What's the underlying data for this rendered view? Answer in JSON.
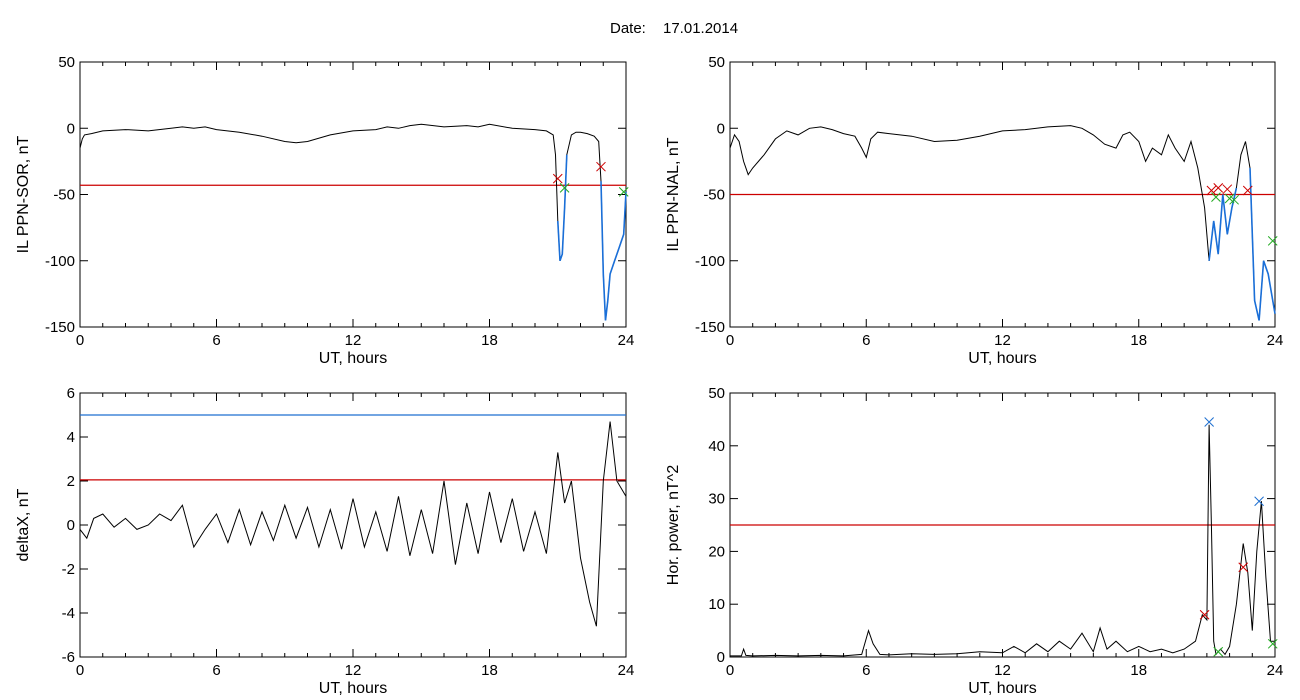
{
  "header": {
    "date_label": "Date:",
    "date_value": "17.01.2014"
  },
  "colors": {
    "trace": "#000000",
    "threshold_red": "#cc0000",
    "threshold_blue": "#1f6fd0",
    "segment_blue": "#1a6fd8",
    "marker_green": "#22aa22",
    "marker_red": "#cc0000",
    "marker_blue": "#1f6fd0"
  },
  "chart_data": [
    {
      "type": "line",
      "id": "sor",
      "xlabel": "UT, hours",
      "ylabel": "IL PPN-SOR, nT",
      "xlim": [
        0,
        24
      ],
      "ylim": [
        -150,
        50
      ],
      "xticks": [
        "0",
        "6",
        "12",
        "18",
        "24"
      ],
      "yticks": [
        "50",
        "0",
        "-50",
        "-100",
        "-150"
      ],
      "threshold": -43,
      "series": [
        {
          "x": [
            0,
            0.1,
            0.2,
            0.5,
            1,
            2,
            3,
            4,
            4.5,
            5,
            5.5,
            6,
            7,
            8,
            9,
            9.5,
            10,
            11,
            12,
            13,
            13.5,
            14,
            14.5,
            15,
            16,
            17,
            17.5,
            18,
            19,
            20,
            20.5,
            20.8,
            20.9,
            21,
            21.1,
            21.2,
            21.3,
            21.4,
            21.6,
            21.8,
            22,
            22.3,
            22.6,
            22.8,
            22.9,
            23,
            23.1,
            23.2,
            23.3,
            23.5,
            23.7,
            23.9,
            24
          ],
          "y": [
            -15,
            -8,
            -5,
            -4,
            -2,
            -1,
            -2,
            0,
            1,
            0,
            1,
            -1,
            -3,
            -6,
            -10,
            -11,
            -10,
            -5,
            -2,
            -1,
            1,
            0,
            2,
            3,
            1,
            2,
            1,
            3,
            0,
            -1,
            -2,
            -5,
            -20,
            -70,
            -100,
            -95,
            -60,
            -20,
            -5,
            -3,
            -3,
            -4,
            -6,
            -10,
            -40,
            -110,
            -145,
            -130,
            -110,
            -100,
            -90,
            -80,
            -48
          ]
        }
      ],
      "highlight_segments": [
        [
          21.0,
          21.4
        ],
        [
          22.9,
          24
        ]
      ],
      "markers_red": [
        {
          "x": 21.0,
          "y": -38
        },
        {
          "x": 22.9,
          "y": -29
        }
      ],
      "markers_green": [
        {
          "x": 21.3,
          "y": -45
        },
        {
          "x": 23.9,
          "y": -48
        }
      ]
    },
    {
      "type": "line",
      "id": "nal",
      "xlabel": "UT, hours",
      "ylabel": "IL PPN-NAL, nT",
      "xlim": [
        0,
        24
      ],
      "ylim": [
        -150,
        50
      ],
      "xticks": [
        "0",
        "6",
        "12",
        "18",
        "24"
      ],
      "yticks": [
        "50",
        "0",
        "-50",
        "-100",
        "-150"
      ],
      "threshold": -50,
      "series": [
        {
          "x": [
            0,
            0.2,
            0.4,
            0.6,
            0.8,
            1,
            1.5,
            2,
            2.5,
            3,
            3.5,
            4,
            4.5,
            5,
            5.5,
            5.8,
            6,
            6.2,
            6.5,
            7,
            8,
            9,
            10,
            11,
            12,
            13,
            14,
            15,
            15.5,
            16,
            16.5,
            17,
            17.3,
            17.6,
            18,
            18.3,
            18.6,
            19,
            19.3,
            19.6,
            20,
            20.3,
            20.6,
            20.9,
            21.1,
            21.3,
            21.5,
            21.7,
            21.9,
            22.1,
            22.3,
            22.5,
            22.7,
            22.9,
            23.1,
            23.3,
            23.5,
            23.7,
            24
          ],
          "y": [
            -15,
            -5,
            -10,
            -25,
            -35,
            -30,
            -20,
            -8,
            -2,
            -5,
            0,
            1,
            -1,
            -4,
            -6,
            -15,
            -22,
            -8,
            -3,
            -4,
            -6,
            -10,
            -9,
            -6,
            -2,
            -1,
            1,
            2,
            0,
            -5,
            -12,
            -15,
            -5,
            -3,
            -10,
            -25,
            -15,
            -20,
            -5,
            -15,
            -25,
            -10,
            -30,
            -60,
            -100,
            -70,
            -95,
            -50,
            -80,
            -60,
            -45,
            -20,
            -10,
            -30,
            -130,
            -145,
            -100,
            -110,
            -140
          ]
        }
      ],
      "highlight_segments": [
        [
          21.0,
          22.3
        ],
        [
          22.9,
          24
        ]
      ],
      "markers_red": [
        {
          "x": 21.2,
          "y": -47
        },
        {
          "x": 21.5,
          "y": -45
        },
        {
          "x": 21.9,
          "y": -46
        },
        {
          "x": 22.8,
          "y": -47
        }
      ],
      "markers_green": [
        {
          "x": 21.4,
          "y": -52
        },
        {
          "x": 22.0,
          "y": -53
        },
        {
          "x": 22.2,
          "y": -54
        },
        {
          "x": 23.9,
          "y": -85
        }
      ]
    },
    {
      "type": "line",
      "id": "deltax",
      "xlabel": "UT, hours",
      "ylabel": "deltaX, nT",
      "xlim": [
        0,
        24
      ],
      "ylim": [
        -6,
        6
      ],
      "xticks": [
        "0",
        "6",
        "12",
        "18",
        "24"
      ],
      "yticks": [
        "6",
        "4",
        "2",
        "0",
        "-2",
        "-4",
        "-6"
      ],
      "threshold": 2.05,
      "threshold_blue": 5,
      "series": [
        {
          "x": [
            0,
            0.3,
            0.6,
            1,
            1.5,
            2,
            2.5,
            3,
            3.5,
            4,
            4.5,
            5,
            5.5,
            6,
            6.5,
            7,
            7.5,
            8,
            8.5,
            9,
            9.5,
            10,
            10.5,
            11,
            11.5,
            12,
            12.5,
            13,
            13.5,
            14,
            14.5,
            15,
            15.5,
            16,
            16.5,
            17,
            17.5,
            18,
            18.5,
            19,
            19.5,
            20,
            20.5,
            21,
            21.3,
            21.6,
            22,
            22.4,
            22.7,
            23,
            23.3,
            23.6,
            24
          ],
          "y": [
            -0.2,
            -0.6,
            0.3,
            0.5,
            -0.1,
            0.3,
            -0.2,
            0.0,
            0.5,
            0.2,
            0.9,
            -1.0,
            -0.2,
            0.5,
            -0.8,
            0.7,
            -0.9,
            0.6,
            -0.7,
            0.9,
            -0.6,
            0.8,
            -1.0,
            0.7,
            -1.1,
            1.2,
            -1.0,
            0.6,
            -1.2,
            1.3,
            -1.4,
            0.7,
            -1.3,
            2.0,
            -1.8,
            1.0,
            -1.3,
            1.5,
            -0.8,
            1.2,
            -1.2,
            0.6,
            -1.3,
            3.3,
            1.0,
            2.0,
            -1.5,
            -3.5,
            -4.6,
            2.0,
            4.7,
            2.0,
            1.3
          ]
        }
      ],
      "highlight_segments": [],
      "markers_red": [],
      "markers_green": []
    },
    {
      "type": "line",
      "id": "power",
      "xlabel": "UT, hours",
      "ylabel": "Hor. power, nT^2",
      "xlim": [
        0,
        24
      ],
      "ylim": [
        0,
        50
      ],
      "xticks": [
        "0",
        "6",
        "12",
        "18",
        "24"
      ],
      "yticks": [
        "50",
        "40",
        "30",
        "20",
        "10",
        "0"
      ],
      "threshold": 25,
      "series": [
        {
          "x": [
            0,
            0.5,
            0.6,
            0.7,
            1,
            2,
            3,
            4,
            5,
            5.8,
            6.1,
            6.3,
            6.6,
            7,
            8,
            9,
            10,
            11,
            12,
            12.5,
            13,
            13.5,
            14,
            14.5,
            15,
            15.5,
            16,
            16.3,
            16.6,
            17,
            17.5,
            18,
            18.5,
            19,
            19.5,
            20,
            20.5,
            20.8,
            21,
            21.1,
            21.2,
            21.3,
            21.4,
            21.6,
            21.8,
            22,
            22.3,
            22.6,
            22.8,
            23,
            23.2,
            23.4,
            23.6,
            23.8,
            24
          ],
          "y": [
            0.2,
            0.2,
            1.5,
            0.3,
            0.2,
            0.3,
            0.2,
            0.3,
            0.2,
            0.5,
            5.0,
            2.5,
            0.5,
            0.4,
            0.6,
            0.5,
            0.6,
            1.0,
            0.8,
            2.0,
            0.8,
            2.5,
            1.0,
            3.0,
            1.5,
            4.5,
            1.0,
            5.5,
            1.5,
            3.0,
            1.0,
            2.0,
            1.0,
            1.5,
            0.8,
            1.5,
            3.0,
            8.0,
            7.0,
            44.0,
            25.0,
            3.0,
            0.5,
            1.5,
            0.5,
            2.0,
            10.0,
            21.5,
            16.0,
            5.0,
            20.0,
            29.5,
            15.0,
            3.0,
            3.0
          ]
        }
      ],
      "highlight_segments": [],
      "markers_red": [
        {
          "x": 20.9,
          "y": 8
        },
        {
          "x": 22.6,
          "y": 17
        }
      ],
      "markers_green": [
        {
          "x": 21.5,
          "y": 1
        },
        {
          "x": 23.9,
          "y": 2.5
        }
      ],
      "markers_blue": [
        {
          "x": 21.1,
          "y": 44.5
        },
        {
          "x": 23.3,
          "y": 29.5
        }
      ]
    }
  ]
}
